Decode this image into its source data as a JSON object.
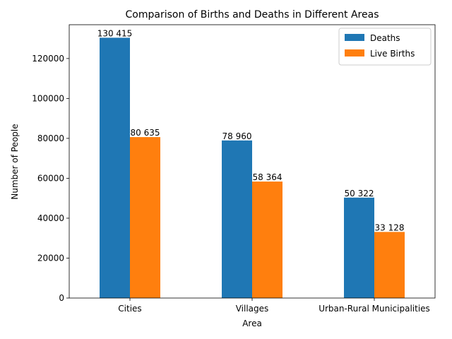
{
  "chart_data": {
    "type": "bar",
    "title": "Comparison of Births and Deaths in Different Areas",
    "xlabel": "Area",
    "ylabel": "Number of People",
    "categories": [
      "Cities",
      "Villages",
      "Urban-Rural Municipalities"
    ],
    "series": [
      {
        "name": "Deaths",
        "color": "#1f77b4",
        "values": [
          130415,
          78960,
          50322
        ],
        "labels": [
          "130 415",
          "78 960",
          "50 322"
        ]
      },
      {
        "name": "Live Births",
        "color": "#ff7f0e",
        "values": [
          80635,
          58364,
          33128
        ],
        "labels": [
          "80 635",
          "58 364",
          "33 128"
        ]
      }
    ],
    "ylim": [
      0,
      136937
    ],
    "yticks": [
      0,
      20000,
      40000,
      60000,
      80000,
      100000,
      120000
    ],
    "ytick_labels": [
      "0",
      "20000",
      "40000",
      "60000",
      "80000",
      "100000",
      "120000"
    ],
    "grid": false,
    "legend_position": "top-right"
  }
}
